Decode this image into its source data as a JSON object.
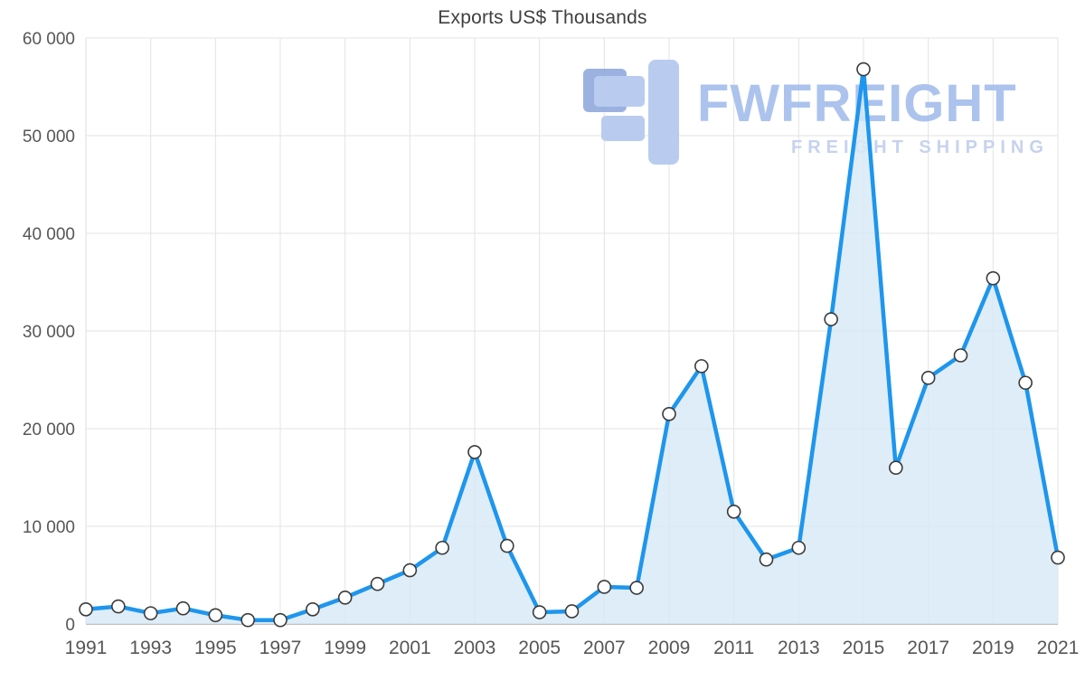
{
  "chart_data": {
    "type": "area",
    "title": "Exports US$ Thousands",
    "x": [
      1991,
      1992,
      1993,
      1994,
      1995,
      1996,
      1997,
      1998,
      1999,
      2000,
      2001,
      2002,
      2003,
      2004,
      2005,
      2006,
      2007,
      2008,
      2009,
      2010,
      2011,
      2012,
      2013,
      2014,
      2015,
      2016,
      2017,
      2018,
      2019,
      2020,
      2021
    ],
    "values": [
      1500,
      1800,
      1100,
      1600,
      900,
      400,
      400,
      1500,
      2700,
      4100,
      5500,
      7800,
      17600,
      8000,
      1200,
      1300,
      3800,
      3700,
      21500,
      26400,
      11500,
      6600,
      7800,
      31200,
      56800,
      16000,
      25200,
      27500,
      35400,
      24700,
      6800
    ],
    "ylim": [
      0,
      60000
    ],
    "ytick_step": 10000,
    "xticks": [
      1991,
      1993,
      1995,
      1997,
      1999,
      2001,
      2003,
      2005,
      2007,
      2009,
      2011,
      2013,
      2015,
      2017,
      2019,
      2021
    ],
    "grid": true,
    "xlabel": "",
    "ylabel": "",
    "legend": "none",
    "colors": {
      "line": "#1e96ed",
      "fill": "#d7e9f7",
      "marker_fill": "#ffffff",
      "marker_stroke": "#3b3b3b",
      "grid": "#e3e3e3",
      "axis": "#9a9a9a",
      "tick_text": "#565656",
      "title_text": "#3f3f3f"
    }
  },
  "watermark": {
    "brand": "FWFREIGHT",
    "subtitle": "FREIGHT SHIPPING",
    "brand_color": "#a8c0ec"
  }
}
